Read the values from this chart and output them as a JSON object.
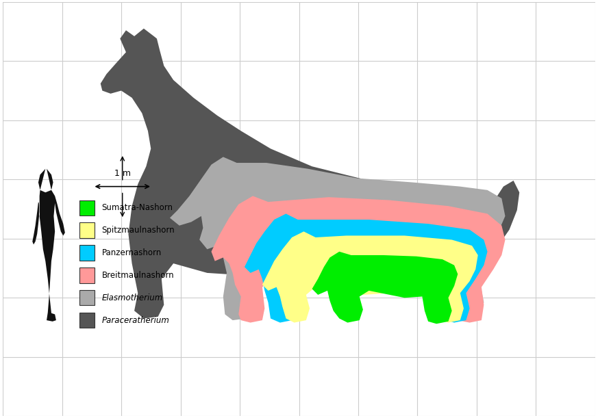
{
  "background_color": "#ffffff",
  "grid_color": "#cccccc",
  "legend_entries": [
    {
      "label": "Sumatra-Nashorn",
      "color": "#00ee00",
      "italic": false
    },
    {
      "label": "Spitzmaulnashorn",
      "color": "#ffff88",
      "italic": false
    },
    {
      "label": "Panzernashorn",
      "color": "#00ccff",
      "italic": false
    },
    {
      "label": "Breitmaulnashorn",
      "color": "#ff9999",
      "italic": false
    },
    {
      "label": "Elasmotherium",
      "color": "#aaaaaa",
      "italic": true
    },
    {
      "label": "Paraceratherium",
      "color": "#555555",
      "italic": true
    }
  ],
  "scale_label": "1 m",
  "figsize": [
    8.73,
    6.11
  ],
  "dpi": 100,
  "para_color": "#555555",
  "elas_color": "#aaaaaa",
  "breit_color": "#ff9999",
  "panz_color": "#00ccff",
  "spitz_color": "#ffff88",
  "suma_color": "#00ee00",
  "human_color": "#111111"
}
